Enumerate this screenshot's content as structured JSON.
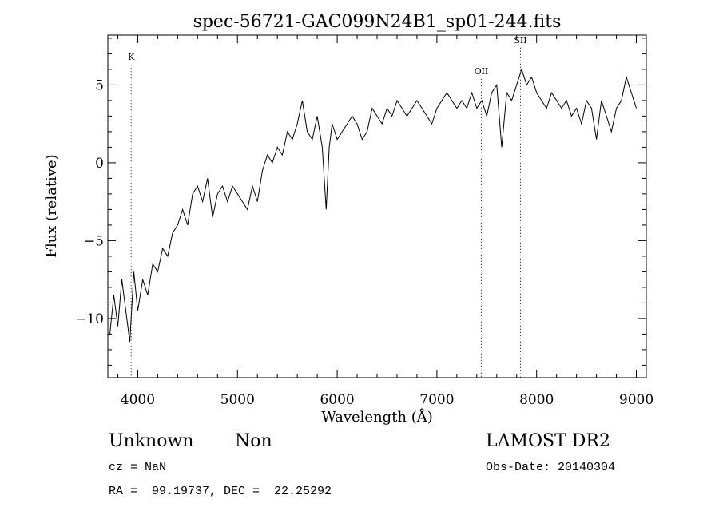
{
  "chart_data": {
    "type": "line",
    "title": "spec-56721-GAC099N24B1_sp01-244.fits",
    "xlabel": "Wavelength (Å)",
    "ylabel": "Flux (relative)",
    "xlim": [
      3700,
      9100
    ],
    "ylim": [
      -13.8,
      8.2
    ],
    "x_ticks": [
      4000,
      5000,
      6000,
      7000,
      8000,
      9000
    ],
    "y_ticks": [
      -10,
      -5,
      0,
      5
    ],
    "line_color": "#000000",
    "grid": false,
    "legend": "none",
    "series": [
      {
        "x": [
          3720,
          3760,
          3800,
          3840,
          3880,
          3920,
          3960,
          4000,
          4050,
          4100,
          4150,
          4200,
          4250,
          4300,
          4350,
          4400,
          4450,
          4500,
          4550,
          4600,
          4650,
          4700,
          4750,
          4800,
          4850,
          4900,
          4950,
          5000,
          5050,
          5100,
          5150,
          5200,
          5250,
          5300,
          5350,
          5400,
          5450,
          5500,
          5550,
          5600,
          5650,
          5700,
          5750,
          5800,
          5850,
          5890,
          5920,
          5950,
          6000,
          6050,
          6100,
          6150,
          6200,
          6250,
          6300,
          6350,
          6400,
          6450,
          6500,
          6550,
          6600,
          6650,
          6700,
          6750,
          6800,
          6850,
          6900,
          6950,
          7000,
          7050,
          7100,
          7150,
          7200,
          7250,
          7300,
          7350,
          7400,
          7450,
          7500,
          7550,
          7600,
          7650,
          7700,
          7750,
          7800,
          7850,
          7900,
          7950,
          8000,
          8050,
          8100,
          8150,
          8200,
          8250,
          8300,
          8350,
          8400,
          8450,
          8500,
          8550,
          8600,
          8650,
          8700,
          8750,
          8800,
          8850,
          8900,
          8950,
          9000
        ],
        "y": [
          -11.0,
          -8.5,
          -10.5,
          -7.5,
          -9.5,
          -11.5,
          -7.0,
          -9.5,
          -7.5,
          -8.5,
          -6.5,
          -7.0,
          -5.5,
          -6.0,
          -4.5,
          -4.0,
          -3.0,
          -4.0,
          -2.0,
          -1.5,
          -2.5,
          -1.0,
          -3.5,
          -2.0,
          -1.5,
          -2.5,
          -1.5,
          -2.0,
          -2.5,
          -3.0,
          -1.5,
          -2.5,
          -0.5,
          0.5,
          0.0,
          1.0,
          0.5,
          2.0,
          1.5,
          2.5,
          4.0,
          2.0,
          1.5,
          3.0,
          1.0,
          -3.0,
          1.0,
          2.5,
          1.5,
          2.0,
          2.5,
          3.0,
          2.5,
          1.5,
          2.0,
          3.5,
          3.0,
          2.5,
          3.5,
          3.0,
          4.0,
          3.5,
          3.0,
          3.5,
          4.0,
          3.5,
          3.0,
          2.5,
          3.5,
          4.0,
          4.5,
          4.0,
          3.5,
          4.0,
          3.5,
          4.5,
          3.5,
          4.0,
          3.0,
          4.5,
          5.0,
          1.0,
          4.5,
          4.0,
          5.0,
          6.0,
          5.0,
          5.5,
          4.5,
          4.0,
          3.5,
          4.5,
          4.0,
          3.5,
          4.0,
          3.0,
          3.5,
          2.5,
          4.0,
          3.5,
          1.5,
          4.0,
          3.0,
          2.0,
          3.5,
          4.0,
          5.5,
          4.5,
          3.5
        ]
      }
    ],
    "annotations": [
      {
        "label": "K",
        "x": 3934,
        "y": 6.6
      },
      {
        "label": "OII",
        "x": 7445,
        "y": 5.7
      },
      {
        "label": "SII",
        "x": 7838,
        "y": 7.7
      }
    ],
    "info": {
      "class": "Unknown",
      "subclass": "Non",
      "survey": "LAMOST DR2",
      "redshift": "cz = NaN",
      "obs_date": "Obs-Date: 20140304",
      "coords": "RA =  99.19737, DEC =  22.25292"
    }
  }
}
